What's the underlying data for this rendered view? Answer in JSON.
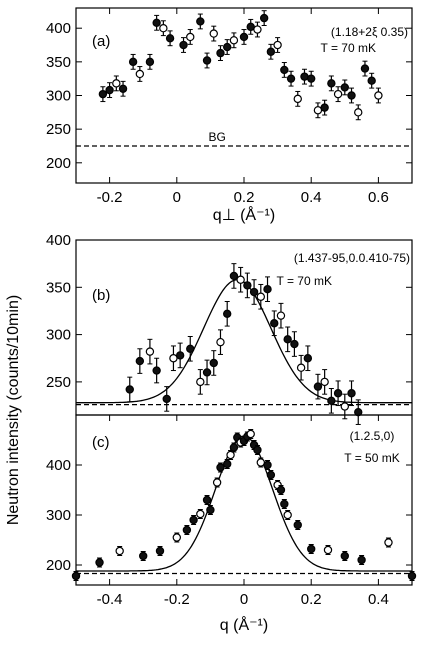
{
  "shared_ylabel": "Neutron intensity (counts/10min)",
  "chart_data": [
    {
      "type": "scatter",
      "panel_label": "(a)",
      "annotations": [
        "(1.18+2ξ 0.35)",
        "T = 70 mK",
        "BG"
      ],
      "xlabel": "q⊥ (Å⁻¹)",
      "ylabel": "",
      "xlim": [
        -0.3,
        0.7
      ],
      "ylim": [
        170,
        430
      ],
      "xticks": [
        -0.2,
        0,
        0.2,
        0.4,
        0.6
      ],
      "xtick_labels": [
        "-0.2",
        "0",
        "0.2",
        "0.4",
        "0.6"
      ],
      "yticks": [
        200,
        250,
        300,
        350,
        400
      ],
      "ytick_labels": [
        "200",
        "250",
        "300",
        "350",
        "400"
      ],
      "background_level": 225,
      "grid": false,
      "series": [
        {
          "x": [
            -0.22,
            -0.2,
            -0.18,
            -0.16,
            -0.13,
            -0.11,
            -0.08,
            -0.06,
            -0.04,
            -0.02,
            0.02,
            0.04,
            0.07,
            0.09,
            0.11,
            0.13,
            0.15,
            0.17,
            0.2,
            0.22,
            0.24,
            0.26,
            0.28,
            0.3,
            0.32,
            0.34,
            0.36,
            0.38,
            0.4,
            0.42,
            0.44,
            0.46,
            0.48,
            0.5,
            0.52,
            0.54,
            0.56,
            0.58,
            0.6
          ],
          "y": [
            302,
            308,
            318,
            310,
            350,
            332,
            350,
            408,
            400,
            385,
            375,
            387,
            410,
            352,
            392,
            363,
            372,
            382,
            387,
            402,
            398,
            415,
            365,
            375,
            338,
            325,
            295,
            328,
            325,
            278,
            282,
            318,
            302,
            312,
            300,
            275,
            340,
            322,
            300
          ],
          "err": [
            11,
            11,
            11,
            11,
            11,
            11,
            11,
            11,
            11,
            11,
            11,
            11,
            11,
            11,
            11,
            11,
            11,
            11,
            11,
            11,
            11,
            11,
            11,
            11,
            11,
            11,
            11,
            11,
            11,
            11,
            11,
            11,
            11,
            11,
            11,
            11,
            11,
            11,
            11
          ]
        }
      ]
    },
    {
      "type": "scatter",
      "panel_label": "(b)",
      "annotations": [
        "(1.437-95,0.0.410-75)",
        "T = 70 mK"
      ],
      "xlabel": "",
      "ylabel": "",
      "xlim": [
        -0.5,
        0.5
      ],
      "ylim": [
        215,
        400
      ],
      "xticks": [],
      "xtick_labels": [],
      "yticks": [
        250,
        300,
        350,
        400
      ],
      "ytick_labels": [
        "250",
        "300",
        "350",
        "400"
      ],
      "background_level": 226,
      "grid": false,
      "fit": {
        "baseline": 228,
        "amplitude": 130,
        "center": -0.02,
        "sigma": 0.1
      },
      "series": [
        {
          "x": [
            -0.34,
            -0.31,
            -0.28,
            -0.26,
            -0.23,
            -0.21,
            -0.19,
            -0.16,
            -0.13,
            -0.11,
            -0.09,
            -0.07,
            -0.05,
            -0.03,
            -0.01,
            0.01,
            0.03,
            0.05,
            0.07,
            0.09,
            0.11,
            0.13,
            0.15,
            0.17,
            0.19,
            0.22,
            0.24,
            0.26,
            0.28,
            0.3,
            0.32,
            0.34
          ],
          "y": [
            242,
            272,
            282,
            262,
            232,
            275,
            278,
            285,
            250,
            260,
            270,
            292,
            322,
            362,
            358,
            352,
            345,
            340,
            348,
            312,
            320,
            295,
            290,
            265,
            275,
            245,
            250,
            230,
            238,
            224,
            238,
            218
          ],
          "err": [
            13,
            13,
            13,
            13,
            13,
            13,
            13,
            13,
            13,
            13,
            13,
            13,
            13,
            13,
            13,
            13,
            13,
            13,
            13,
            13,
            13,
            13,
            13,
            13,
            13,
            13,
            13,
            13,
            13,
            13,
            13,
            13
          ]
        }
      ]
    },
    {
      "type": "scatter",
      "panel_label": "(c)",
      "annotations": [
        "(1.2.5,0)",
        "T = 50 mK"
      ],
      "xlabel": "q (Å⁻¹)",
      "ylabel": "",
      "xlim": [
        -0.5,
        0.5
      ],
      "ylim": [
        160,
        500
      ],
      "xticks": [
        -0.4,
        -0.2,
        0,
        0.2,
        0.4
      ],
      "xtick_labels": [
        "-0.4",
        "-0.2",
        "0",
        "0.2",
        "0.4"
      ],
      "yticks": [
        200,
        300,
        400
      ],
      "ytick_labels": [
        "200",
        "300",
        "400"
      ],
      "background_level": 183,
      "grid": false,
      "fit": {
        "baseline": 188,
        "amplitude": 270,
        "center": 0.0,
        "sigma": 0.085
      },
      "series": [
        {
          "x": [
            -0.5,
            -0.43,
            -0.37,
            -0.3,
            -0.25,
            -0.2,
            -0.17,
            -0.15,
            -0.13,
            -0.11,
            -0.1,
            -0.08,
            -0.07,
            -0.05,
            -0.04,
            -0.03,
            -0.02,
            -0.01,
            0.0,
            0.01,
            0.02,
            0.03,
            0.04,
            0.05,
            0.07,
            0.08,
            0.1,
            0.11,
            0.12,
            0.13,
            0.16,
            0.2,
            0.25,
            0.3,
            0.35,
            0.43,
            0.5
          ],
          "y": [
            178,
            205,
            228,
            218,
            228,
            255,
            270,
            290,
            302,
            330,
            310,
            365,
            395,
            402,
            420,
            435,
            455,
            445,
            448,
            457,
            462,
            440,
            430,
            405,
            400,
            380,
            360,
            350,
            322,
            300,
            280,
            232,
            230,
            218,
            210,
            245,
            178
          ],
          "err": [
            9,
            9,
            9,
            9,
            9,
            9,
            9,
            9,
            9,
            9,
            9,
            9,
            9,
            9,
            9,
            9,
            9,
            9,
            9,
            9,
            9,
            9,
            9,
            9,
            9,
            9,
            9,
            9,
            9,
            9,
            9,
            9,
            9,
            9,
            9,
            9,
            9
          ]
        }
      ]
    }
  ]
}
